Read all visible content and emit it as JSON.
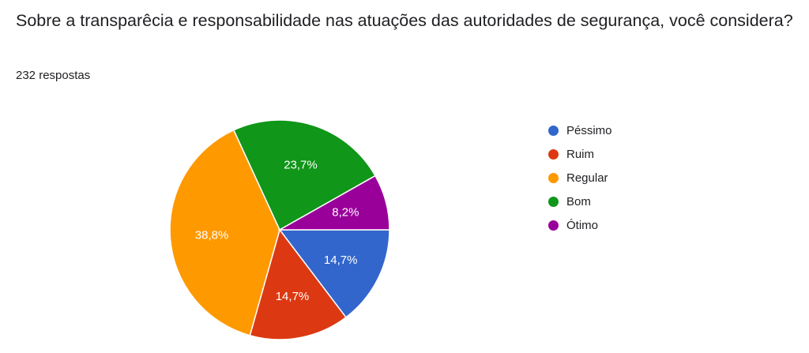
{
  "question": {
    "title": "Sobre a transparêcia e responsabilidade nas  atuações das autoridades de segurança, você considera?",
    "responses_label": "232 respostas"
  },
  "chart_data": {
    "type": "pie",
    "title": "",
    "start_angle_deg": 0,
    "direction": "clockwise",
    "slices": [
      {
        "label": "Péssimo",
        "value": 14.7,
        "display": "14,7%",
        "color": "#3366cc"
      },
      {
        "label": "Ruim",
        "value": 14.7,
        "display": "14,7%",
        "color": "#dc3912"
      },
      {
        "label": "Regular",
        "value": 38.8,
        "display": "38,8%",
        "color": "#ff9900"
      },
      {
        "label": "Bom",
        "value": 23.7,
        "display": "23,7%",
        "color": "#109618"
      },
      {
        "label": "Ótimo",
        "value": 8.2,
        "display": "8,2%",
        "color": "#990099"
      }
    ],
    "legend_placement": "right"
  }
}
